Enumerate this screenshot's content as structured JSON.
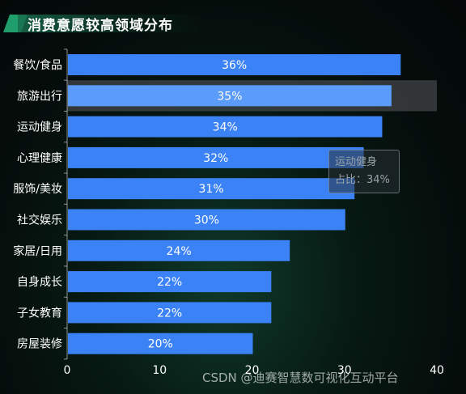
{
  "title": "消费意愿较高领域分布",
  "colors": {
    "bar": "#3b82f6",
    "bar_highlight": "#5b9bfa",
    "hover_band": "rgba(90,90,95,0.55)",
    "label": "#ffffff",
    "axis_text": "#ffffff"
  },
  "tooltip": {
    "category": "运动健身",
    "value_text": "占比：34%"
  },
  "watermark": "CSDN @迪赛智慧数可视化互动平台",
  "chart_data": {
    "type": "bar",
    "orientation": "horizontal",
    "categories": [
      "餐饮/食品",
      "旅游出行",
      "运动健身",
      "心理健康",
      "服饰/美妆",
      "社交娱乐",
      "家居/日用",
      "自身成长",
      "子女教育",
      "房屋装修"
    ],
    "values": [
      36,
      35,
      34,
      32,
      31,
      30,
      24,
      22,
      22,
      20
    ],
    "data_labels": [
      "36%",
      "35%",
      "34%",
      "32%",
      "31%",
      "30%",
      "24%",
      "22%",
      "22%",
      "20%"
    ],
    "x_ticks": [
      "0",
      "10",
      "20",
      "30",
      "40"
    ],
    "xlim": [
      0,
      40
    ],
    "highlighted_category": "旅游出行",
    "grid": false,
    "title": "消费意愿较高领域分布"
  }
}
